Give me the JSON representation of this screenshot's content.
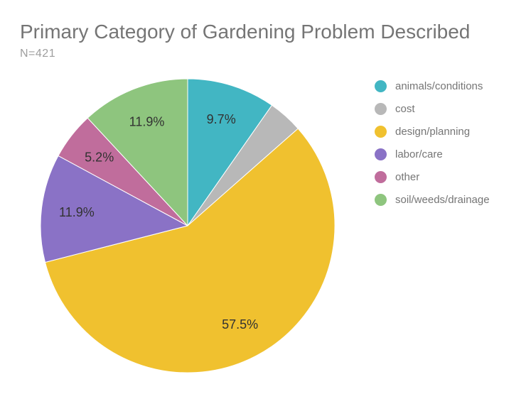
{
  "header": {
    "title": "Primary Category of Gardening Problem Described",
    "subtitle": "N=421"
  },
  "chart_data": {
    "type": "pie",
    "title": "Primary Category of Gardening Problem Described",
    "subtitle": "N=421",
    "sample_size": 421,
    "legend_position": "right",
    "direction": "clockwise",
    "start_angle_deg": 0,
    "slices": [
      {
        "label": "animals/conditions",
        "value": 9.7,
        "display_label": "9.7%",
        "color": "#42b6c3"
      },
      {
        "label": "cost",
        "value": 3.8,
        "display_label": "",
        "color": "#b8b8b8"
      },
      {
        "label": "design/planning",
        "value": 57.5,
        "display_label": "57.5%",
        "color": "#f0c12f"
      },
      {
        "label": "labor/care",
        "value": 11.9,
        "display_label": "11.9%",
        "color": "#8a72c6"
      },
      {
        "label": "other",
        "value": 5.2,
        "display_label": "5.2%",
        "color": "#c06d9c"
      },
      {
        "label": "soil/weeds/drainage",
        "value": 11.9,
        "display_label": "11.9%",
        "color": "#8ec57e"
      }
    ]
  }
}
